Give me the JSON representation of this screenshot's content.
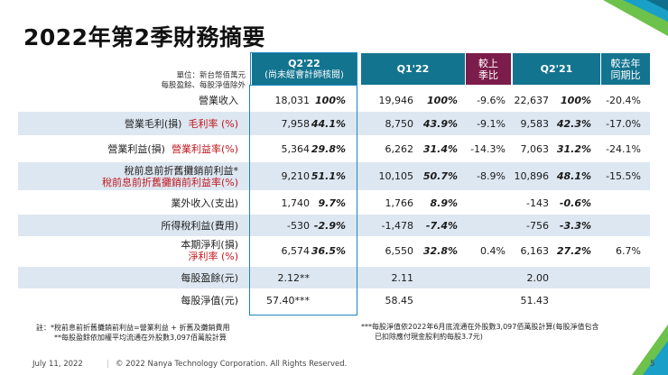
{
  "title": "2022年第2季財務摘要",
  "unit_lines": [
    "單位：新台幣佰萬元",
    "每股盈餘、每股淨值除外"
  ],
  "columns": {
    "q222": {
      "label": "Q2'22",
      "sub": "(尚未經會計師核閱)"
    },
    "q122": {
      "label": "Q1'22"
    },
    "qoq": {
      "line1": "較上",
      "line2": "季比"
    },
    "q221": {
      "label": "Q2'21"
    },
    "yoy": {
      "line1": "較去年",
      "line2": "同期比"
    }
  },
  "rows": [
    {
      "label1": "營業收入",
      "label2": "",
      "q222": "18,031",
      "q222p": "100%",
      "q122": "19,946",
      "q122p": "100%",
      "qoq": "-9.6%",
      "q221": "22,637",
      "q221p": "100%",
      "yoy": "-20.4%"
    },
    {
      "label1": "營業毛利(損)",
      "label2": "毛利率 (%)",
      "q222": "7,958",
      "q222p": "44.1%",
      "q122": "8,750",
      "q122p": "43.9%",
      "qoq": "-9.1%",
      "q221": "9,583",
      "q221p": "42.3%",
      "yoy": "-17.0%"
    },
    {
      "label1": "營業利益(損)",
      "label2": "營業利益率(%)",
      "q222": "5,364",
      "q222p": "29.8%",
      "q122": "6,262",
      "q122p": "31.4%",
      "qoq": "-14.3%",
      "q221": "7,063",
      "q221p": "31.2%",
      "yoy": "-24.1%"
    },
    {
      "label1": "稅前息前折舊攤銷前利益*",
      "label2": "稅前息前折舊攤銷前利益率(%)",
      "q222": "9,210",
      "q222p": "51.1%",
      "q122": "10,105",
      "q122p": "50.7%",
      "qoq": "-8.9%",
      "q221": "10,896",
      "q221p": "48.1%",
      "yoy": "-15.5%"
    },
    {
      "label1": "業外收入(支出)",
      "label2": "",
      "q222": "1,740",
      "q222p": "9.7%",
      "q122": "1,766",
      "q122p": "8.9%",
      "qoq": "",
      "q221": "-143",
      "q221p": "-0.6%",
      "yoy": ""
    },
    {
      "label1": "所得稅利益(費用)",
      "label2": "",
      "q222": "-530",
      "q222p": "-2.9%",
      "q122": "-1,478",
      "q122p": "-7.4%",
      "qoq": "",
      "q221": "-756",
      "q221p": "-3.3%",
      "yoy": ""
    },
    {
      "label1": "本期淨利(損)",
      "label2": "淨利率 (%)",
      "q222": "6,574",
      "q222p": "36.5%",
      "q122": "6,550",
      "q122p": "32.8%",
      "qoq": "0.4%",
      "q221": "6,163",
      "q221p": "27.2%",
      "yoy": "6.7%"
    },
    {
      "label1": "每股盈餘(元)",
      "label2": "",
      "q222": "2.12**",
      "q222p": "",
      "q122": "2.11",
      "q122p": "",
      "qoq": "",
      "q221": "2.00",
      "q221p": "",
      "yoy": ""
    },
    {
      "label1": "每股淨值(元)",
      "label2": "",
      "q222": "57.40***",
      "q222p": "",
      "q122": "58.45",
      "q122p": "",
      "qoq": "",
      "q221": "51.43",
      "q221p": "",
      "yoy": ""
    }
  ],
  "notes_left": [
    "註：*稅前息前折舊攤銷前利益=營業利益 + 折舊及攤銷費用",
    "**每股盈餘依加權平均流通在外股數3,097佰萬股計算"
  ],
  "notes_right": [
    "***每股淨值依2022年6月底流通在外股數3,097佰萬股計算(每股淨值包含",
    "已扣除應付現金股利約每股3.7元)"
  ],
  "footer": {
    "date": "July 11, 2022",
    "copyright": "© 2022 Nanya Technology Corporation. All Rights Reserved.",
    "page": "5"
  },
  "colors": {
    "teal": "#13748f",
    "maroon": "#7b1c4a",
    "shade": "#dde7f1",
    "red": "#c0171e",
    "box": "#1b87c0"
  }
}
